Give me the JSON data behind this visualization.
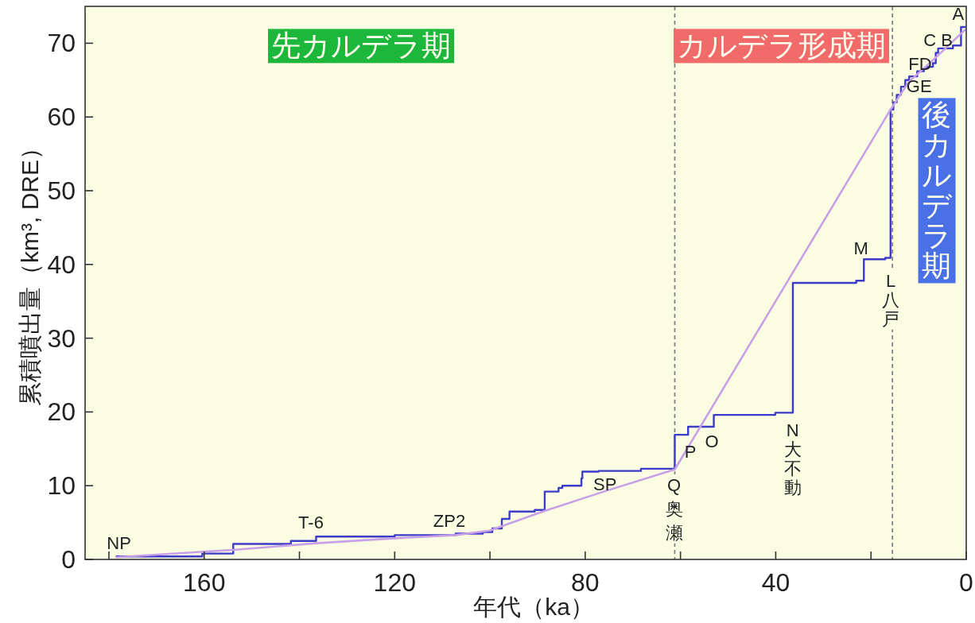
{
  "chart_data": {
    "type": "step",
    "xlabel": "年代（ka）",
    "ylabel": "累積噴出量（km³, DRE）",
    "xlim": [
      185,
      0
    ],
    "ylim": [
      0,
      75
    ],
    "xticks": [
      {
        "value": 180,
        "label": null
      },
      160,
      {
        "value": 140,
        "label": null
      },
      120,
      {
        "value": 100,
        "label": null
      },
      80,
      {
        "value": 60,
        "label": null
      },
      40,
      {
        "value": 20,
        "label": null
      },
      0
    ],
    "yticks": [
      0,
      10,
      20,
      30,
      40,
      50,
      60,
      70
    ],
    "series": [
      {
        "color": "#3c3cc8",
        "x": [
          178.4,
          160.4,
          153.9,
          141.8,
          136.5,
          120,
          107.2,
          101.5,
          99.5,
          97.5,
          95.9,
          90.6,
          88.5,
          85.6,
          84.8,
          80.8,
          80.6,
          77.2,
          68.3,
          61.2,
          58.4,
          53.0,
          40.1,
          36.4,
          23.1,
          21.5,
          17.0,
          15.9,
          15.3,
          14.6,
          13.7,
          12.8,
          12.0,
          10.3,
          8.9,
          8.1,
          7.0,
          6.4,
          5.9,
          2.8,
          1.1,
          0.3
        ],
        "values": [
          0.4,
          0.8,
          2.1,
          2.5,
          3.1,
          3.3,
          3.5,
          3.7,
          4.2,
          5.5,
          6.5,
          6.7,
          9.2,
          9.7,
          10.0,
          11.0,
          11.9,
          12.0,
          12.3,
          16.9,
          18.0,
          19.6,
          19.9,
          37.5,
          37.8,
          40.7,
          40.9,
          61.0,
          62.0,
          63.0,
          64.1,
          65.0,
          65.5,
          66.2,
          66.6,
          66.8,
          67.3,
          68.7,
          69.3,
          69.7,
          72.2,
          72.2
        ]
      },
      {
        "type": "line",
        "color": "#c8a0e8",
        "x": [
          178.4,
          153.9,
          136.5,
          119.2,
          107.2,
          100.1,
          88.9,
          76.1,
          61.2,
          15.9,
          12.0,
          6.0,
          0.3
        ],
        "values": [
          0.3,
          1.3,
          2.2,
          2.9,
          3.3,
          3.9,
          6.5,
          9.2,
          12.2,
          61.0,
          64.8,
          68.3,
          71.8
        ]
      }
    ],
    "ref_lines": [
      {
        "axis": "x",
        "value": 61.2,
        "color": "#777777",
        "line_style": "dashed"
      },
      {
        "axis": "x",
        "value": 15.5,
        "color": "#777777",
        "line_style": "dashed"
      }
    ],
    "annotations": [
      "先カルデラ期",
      "カルデラ形成期",
      "後カルデラ期",
      "NP",
      "T-6",
      "ZP2",
      "SP",
      "Q奥瀬",
      "P",
      "O",
      "N大不動",
      "M",
      "L八戸",
      "GE",
      "FD",
      "C B",
      "A"
    ]
  }
}
